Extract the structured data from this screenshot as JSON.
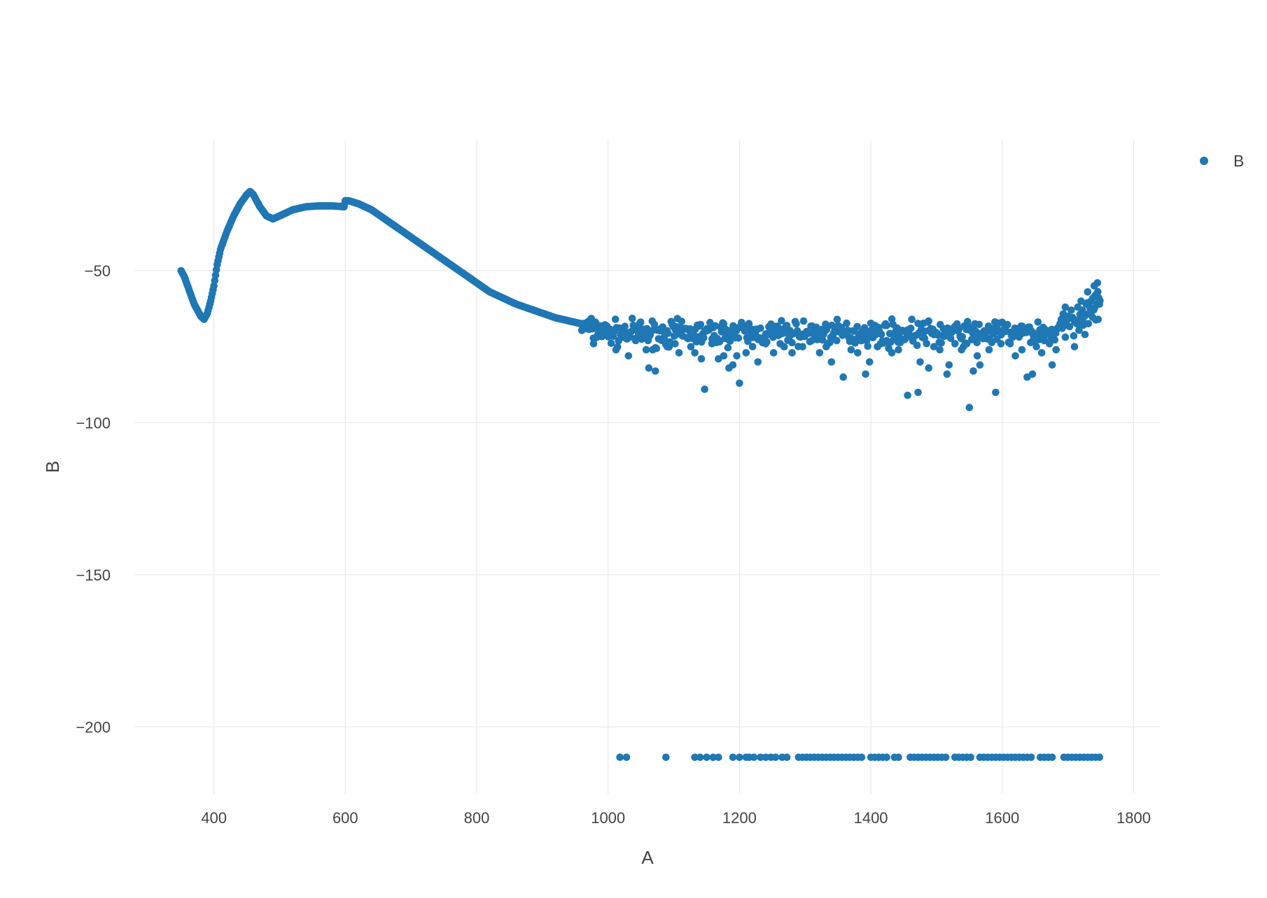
{
  "chart_data": {
    "type": "scatter",
    "xlabel": "A",
    "ylabel": "B",
    "xlim": [
      280,
      1840
    ],
    "ylim": [
      -222,
      -7
    ],
    "x_ticks": [
      400,
      600,
      800,
      1000,
      1200,
      1400,
      1600,
      1800
    ],
    "y_ticks": [
      -50,
      -100,
      -150,
      -200
    ],
    "grid": true,
    "legend_position": "top-right",
    "marker_color": "#1f77b4",
    "series": [
      {
        "name": "B",
        "color": "#1f77b4",
        "curve_segments": [
          {
            "x": [
              350,
              355,
              360,
              365,
              370,
              375,
              380,
              385,
              390,
              395,
              400,
              405,
              410,
              420,
              430,
              440,
              450,
              455,
              460,
              465,
              470,
              480,
              490,
              500,
              520,
              540,
              560,
              580,
              598,
              600,
              605,
              620,
              640,
              660,
              680,
              700,
              720,
              740,
              760,
              780,
              800,
              820,
              840,
              860,
              880,
              900,
              920,
              940,
              960,
              980,
              1000
            ],
            "y": [
              -50,
              -52,
              -55,
              -58,
              -61,
              -63,
              -65,
              -66,
              -64,
              -60,
              -55,
              -48,
              -43,
              -37,
              -32,
              -28,
              -25,
              -24,
              -25,
              -27,
              -29,
              -32,
              -33,
              -32,
              -30,
              -29,
              -28.7,
              -28.7,
              -29,
              -27,
              -27,
              -28,
              -30,
              -33,
              -36,
              -39,
              -42,
              -45,
              -48,
              -51,
              -54,
              -57,
              -59,
              -61,
              -62.5,
              -64,
              -65.5,
              -66.5,
              -67.5,
              -68,
              -68.5
            ]
          }
        ],
        "points": [
          {
            "x": 978,
            "y": -74
          },
          {
            "x": 1012,
            "y": -76
          },
          {
            "x": 1025,
            "y": -72
          },
          {
            "x": 1031,
            "y": -78
          },
          {
            "x": 1042,
            "y": -73
          },
          {
            "x": 1058,
            "y": -76
          },
          {
            "x": 1062,
            "y": -82
          },
          {
            "x": 1072,
            "y": -83
          },
          {
            "x": 1068,
            "y": -76
          },
          {
            "x": 1085,
            "y": -72
          },
          {
            "x": 1090,
            "y": -75
          },
          {
            "x": 1102,
            "y": -74
          },
          {
            "x": 1108,
            "y": -77
          },
          {
            "x": 1120,
            "y": -72
          },
          {
            "x": 1126,
            "y": -75
          },
          {
            "x": 1132,
            "y": -77
          },
          {
            "x": 1142,
            "y": -79
          },
          {
            "x": 1147,
            "y": -89
          },
          {
            "x": 1158,
            "y": -74
          },
          {
            "x": 1168,
            "y": -79
          },
          {
            "x": 1176,
            "y": -78
          },
          {
            "x": 1184,
            "y": -82
          },
          {
            "x": 1190,
            "y": -81
          },
          {
            "x": 1196,
            "y": -78
          },
          {
            "x": 1200,
            "y": -87
          },
          {
            "x": 1210,
            "y": -77
          },
          {
            "x": 1220,
            "y": -75
          },
          {
            "x": 1228,
            "y": -80
          },
          {
            "x": 1240,
            "y": -74
          },
          {
            "x": 1252,
            "y": -77
          },
          {
            "x": 1262,
            "y": -74
          },
          {
            "x": 1268,
            "y": -75
          },
          {
            "x": 1280,
            "y": -77
          },
          {
            "x": 1296,
            "y": -75
          },
          {
            "x": 1310,
            "y": -73
          },
          {
            "x": 1322,
            "y": -77
          },
          {
            "x": 1332,
            "y": -75
          },
          {
            "x": 1340,
            "y": -80
          },
          {
            "x": 1348,
            "y": -73
          },
          {
            "x": 1358,
            "y": -85
          },
          {
            "x": 1370,
            "y": -76
          },
          {
            "x": 1380,
            "y": -77
          },
          {
            "x": 1392,
            "y": -84
          },
          {
            "x": 1398,
            "y": -80
          },
          {
            "x": 1410,
            "y": -75
          },
          {
            "x": 1424,
            "y": -73
          },
          {
            "x": 1432,
            "y": -77
          },
          {
            "x": 1442,
            "y": -76
          },
          {
            "x": 1456,
            "y": -91
          },
          {
            "x": 1472,
            "y": -90
          },
          {
            "x": 1475,
            "y": -80
          },
          {
            "x": 1488,
            "y": -82
          },
          {
            "x": 1496,
            "y": -75
          },
          {
            "x": 1505,
            "y": -76
          },
          {
            "x": 1516,
            "y": -84
          },
          {
            "x": 1519,
            "y": -81
          },
          {
            "x": 1528,
            "y": -74
          },
          {
            "x": 1538,
            "y": -76
          },
          {
            "x": 1546,
            "y": -74
          },
          {
            "x": 1550,
            "y": -95
          },
          {
            "x": 1556,
            "y": -83
          },
          {
            "x": 1562,
            "y": -78
          },
          {
            "x": 1566,
            "y": -81
          },
          {
            "x": 1580,
            "y": -76
          },
          {
            "x": 1590,
            "y": -90
          },
          {
            "x": 1598,
            "y": -74
          },
          {
            "x": 1612,
            "y": -74
          },
          {
            "x": 1620,
            "y": -78
          },
          {
            "x": 1630,
            "y": -76
          },
          {
            "x": 1638,
            "y": -85
          },
          {
            "x": 1646,
            "y": -84
          },
          {
            "x": 1652,
            "y": -75
          },
          {
            "x": 1660,
            "y": -77
          },
          {
            "x": 1672,
            "y": -74
          },
          {
            "x": 1676,
            "y": -81
          },
          {
            "x": 1682,
            "y": -76
          },
          {
            "x": 1690,
            "y": -66
          },
          {
            "x": 1696,
            "y": -62
          },
          {
            "x": 1700,
            "y": -65
          },
          {
            "x": 1705,
            "y": -63
          },
          {
            "x": 1710,
            "y": -75
          },
          {
            "x": 1715,
            "y": -62
          },
          {
            "x": 1720,
            "y": -60
          },
          {
            "x": 1726,
            "y": -71
          },
          {
            "x": 1730,
            "y": -57
          },
          {
            "x": 1735,
            "y": -60
          },
          {
            "x": 1740,
            "y": -55
          },
          {
            "x": 1745,
            "y": -54
          },
          {
            "x": 1748,
            "y": -61
          },
          {
            "x": 1746,
            "y": -66
          },
          {
            "x": 1742,
            "y": -58
          },
          {
            "x": 1738,
            "y": -59
          },
          {
            "x": 1733,
            "y": -62
          },
          {
            "x": 1728,
            "y": -61
          },
          {
            "x": 1722,
            "y": -63
          },
          {
            "x": 1018,
            "y": -210
          },
          {
            "x": 1028,
            "y": -210
          },
          {
            "x": 1088,
            "y": -210
          },
          {
            "x": 1132,
            "y": -210
          },
          {
            "x": 1140,
            "y": -210
          },
          {
            "x": 1150,
            "y": -210
          },
          {
            "x": 1160,
            "y": -210
          },
          {
            "x": 1168,
            "y": -210
          },
          {
            "x": 1190,
            "y": -210
          },
          {
            "x": 1200,
            "y": -210
          },
          {
            "x": 1210,
            "y": -210
          },
          {
            "x": 1215,
            "y": -210
          },
          {
            "x": 1222,
            "y": -210
          },
          {
            "x": 1232,
            "y": -210
          },
          {
            "x": 1240,
            "y": -210
          },
          {
            "x": 1248,
            "y": -210
          },
          {
            "x": 1255,
            "y": -210
          },
          {
            "x": 1265,
            "y": -210
          },
          {
            "x": 1272,
            "y": -210
          },
          {
            "x": 1290,
            "y": -210
          },
          {
            "x": 1296,
            "y": -210
          },
          {
            "x": 1302,
            "y": -210
          },
          {
            "x": 1308,
            "y": -210
          },
          {
            "x": 1314,
            "y": -210
          },
          {
            "x": 1320,
            "y": -210
          },
          {
            "x": 1326,
            "y": -210
          },
          {
            "x": 1332,
            "y": -210
          },
          {
            "x": 1338,
            "y": -210
          },
          {
            "x": 1344,
            "y": -210
          },
          {
            "x": 1350,
            "y": -210
          },
          {
            "x": 1356,
            "y": -210
          },
          {
            "x": 1362,
            "y": -210
          },
          {
            "x": 1368,
            "y": -210
          },
          {
            "x": 1374,
            "y": -210
          },
          {
            "x": 1380,
            "y": -210
          },
          {
            "x": 1386,
            "y": -210
          },
          {
            "x": 1400,
            "y": -210
          },
          {
            "x": 1406,
            "y": -210
          },
          {
            "x": 1412,
            "y": -210
          },
          {
            "x": 1418,
            "y": -210
          },
          {
            "x": 1424,
            "y": -210
          },
          {
            "x": 1436,
            "y": -210
          },
          {
            "x": 1442,
            "y": -210
          },
          {
            "x": 1460,
            "y": -210
          },
          {
            "x": 1466,
            "y": -210
          },
          {
            "x": 1472,
            "y": -210
          },
          {
            "x": 1478,
            "y": -210
          },
          {
            "x": 1484,
            "y": -210
          },
          {
            "x": 1490,
            "y": -210
          },
          {
            "x": 1496,
            "y": -210
          },
          {
            "x": 1502,
            "y": -210
          },
          {
            "x": 1508,
            "y": -210
          },
          {
            "x": 1514,
            "y": -210
          },
          {
            "x": 1528,
            "y": -210
          },
          {
            "x": 1534,
            "y": -210
          },
          {
            "x": 1540,
            "y": -210
          },
          {
            "x": 1546,
            "y": -210
          },
          {
            "x": 1552,
            "y": -210
          },
          {
            "x": 1566,
            "y": -210
          },
          {
            "x": 1572,
            "y": -210
          },
          {
            "x": 1578,
            "y": -210
          },
          {
            "x": 1584,
            "y": -210
          },
          {
            "x": 1590,
            "y": -210
          },
          {
            "x": 1596,
            "y": -210
          },
          {
            "x": 1602,
            "y": -210
          },
          {
            "x": 1608,
            "y": -210
          },
          {
            "x": 1614,
            "y": -210
          },
          {
            "x": 1620,
            "y": -210
          },
          {
            "x": 1626,
            "y": -210
          },
          {
            "x": 1632,
            "y": -210
          },
          {
            "x": 1638,
            "y": -210
          },
          {
            "x": 1644,
            "y": -210
          },
          {
            "x": 1658,
            "y": -210
          },
          {
            "x": 1664,
            "y": -210
          },
          {
            "x": 1670,
            "y": -210
          },
          {
            "x": 1676,
            "y": -210
          },
          {
            "x": 1694,
            "y": -210
          },
          {
            "x": 1700,
            "y": -210
          },
          {
            "x": 1706,
            "y": -210
          },
          {
            "x": 1712,
            "y": -210
          },
          {
            "x": 1718,
            "y": -210
          },
          {
            "x": 1724,
            "y": -210
          },
          {
            "x": 1730,
            "y": -210
          },
          {
            "x": 1736,
            "y": -210
          },
          {
            "x": 1742,
            "y": -210
          },
          {
            "x": 1748,
            "y": -210
          }
        ],
        "noise_band": {
          "x_range": [
            960,
            1750
          ],
          "center_y": -70.5,
          "spread": 3
        }
      }
    ]
  }
}
